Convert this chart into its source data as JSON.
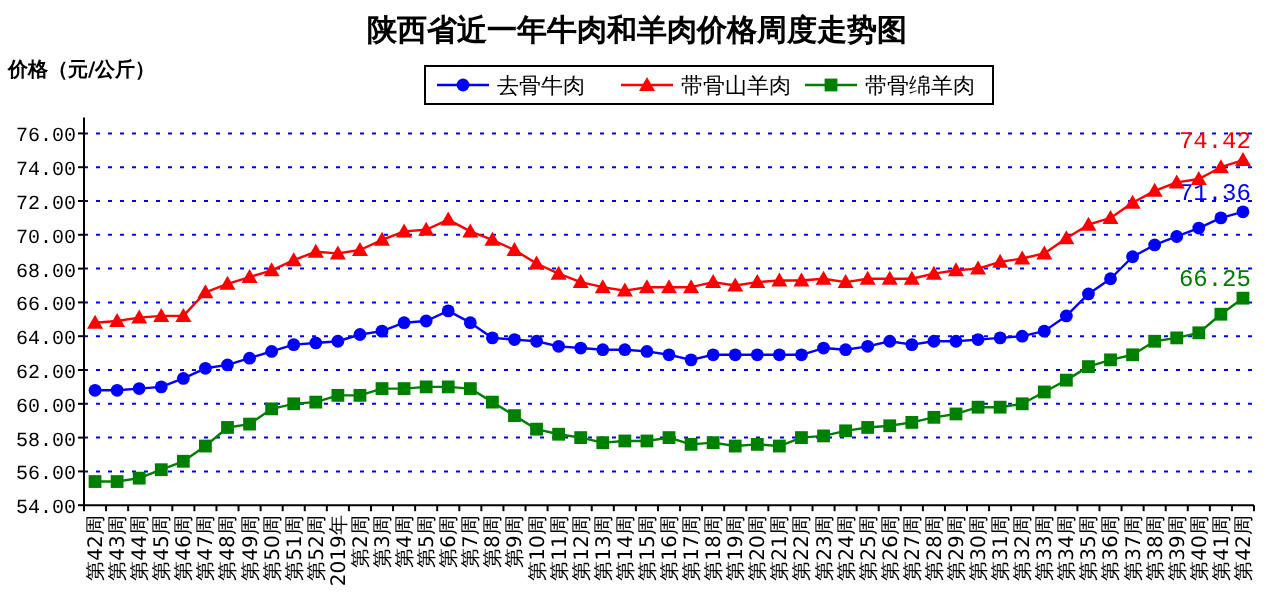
{
  "chart_data": {
    "type": "line",
    "title": "陕西省近一年牛肉和羊肉价格周度走势图",
    "ylabel": "价格（元/公斤）",
    "categories": [
      "第42周",
      "第43周",
      "第44周",
      "第45周",
      "第46周",
      "第47周",
      "第48周",
      "第49周",
      "第50周",
      "第51周",
      "第52周",
      "2019年",
      "第2周",
      "第3周",
      "第4周",
      "第5周",
      "第6周",
      "第7周",
      "第8周",
      "第9周",
      "第10周",
      "第11周",
      "第12周",
      "第13周",
      "第14周",
      "第15周",
      "第16周",
      "第17周",
      "第18周",
      "第19周",
      "第20周",
      "第21周",
      "第22周",
      "第23周",
      "第24周",
      "第25周",
      "第26周",
      "第27周",
      "第28周",
      "第29周",
      "第30周",
      "第31周",
      "第32周",
      "第33周",
      "第34周",
      "第35周",
      "第36周",
      "第37周",
      "第38周",
      "第39周",
      "第40周",
      "第41周",
      "第42周"
    ],
    "series": [
      {
        "name": "去骨牛肉",
        "color": "#0000ff",
        "marker": "circle",
        "values": [
          60.8,
          60.8,
          60.9,
          61.0,
          61.5,
          62.1,
          62.3,
          62.7,
          63.1,
          63.5,
          63.6,
          63.7,
          64.1,
          64.3,
          64.8,
          64.9,
          65.5,
          64.8,
          63.9,
          63.8,
          63.7,
          63.4,
          63.3,
          63.2,
          63.2,
          63.1,
          62.9,
          62.6,
          62.9,
          62.9,
          62.9,
          62.9,
          62.9,
          63.3,
          63.2,
          63.4,
          63.7,
          63.5,
          63.7,
          63.7,
          63.8,
          63.9,
          64.0,
          64.3,
          65.2,
          66.5,
          67.4,
          68.7,
          69.4,
          69.9,
          70.4,
          71.0,
          71.36
        ],
        "value_labels": [
          null,
          null,
          null,
          null,
          null,
          null,
          null,
          null,
          null,
          null,
          null,
          null,
          null,
          null,
          null,
          null,
          null,
          null,
          null,
          null,
          null,
          null,
          null,
          null,
          null,
          null,
          null,
          null,
          null,
          null,
          null,
          null,
          null,
          null,
          null,
          null,
          null,
          null,
          null,
          null,
          null,
          null,
          null,
          null,
          null,
          null,
          null,
          null,
          null,
          null,
          null,
          null,
          "71.36"
        ]
      },
      {
        "name": "带骨山羊肉",
        "color": "#ff0000",
        "marker": "triangle",
        "values": [
          64.8,
          64.9,
          65.1,
          65.2,
          65.2,
          66.6,
          67.1,
          67.5,
          67.9,
          68.5,
          69.0,
          68.9,
          69.1,
          69.7,
          70.2,
          70.3,
          70.9,
          70.2,
          69.7,
          69.1,
          68.3,
          67.7,
          67.2,
          66.9,
          66.7,
          66.9,
          66.9,
          66.9,
          67.2,
          67.0,
          67.2,
          67.3,
          67.3,
          67.4,
          67.2,
          67.4,
          67.4,
          67.4,
          67.7,
          67.9,
          68.0,
          68.4,
          68.6,
          68.9,
          69.8,
          70.6,
          71.0,
          71.9,
          72.6,
          73.1,
          73.3,
          74.0,
          74.42
        ],
        "value_labels": [
          null,
          null,
          null,
          null,
          null,
          null,
          null,
          null,
          null,
          null,
          null,
          null,
          null,
          null,
          null,
          null,
          null,
          null,
          null,
          null,
          null,
          null,
          null,
          null,
          null,
          null,
          null,
          null,
          null,
          null,
          null,
          null,
          null,
          null,
          null,
          null,
          null,
          null,
          null,
          null,
          null,
          null,
          null,
          null,
          null,
          null,
          null,
          null,
          null,
          null,
          null,
          null,
          "74.42"
        ]
      },
      {
        "name": "带骨绵羊肉",
        "color": "#008000",
        "marker": "square",
        "values": [
          55.4,
          55.4,
          55.6,
          56.1,
          56.6,
          57.5,
          58.6,
          58.8,
          59.7,
          60.0,
          60.1,
          60.5,
          60.5,
          60.9,
          60.9,
          61.0,
          61.0,
          60.9,
          60.1,
          59.3,
          58.5,
          58.2,
          58.0,
          57.7,
          57.8,
          57.8,
          58.0,
          57.6,
          57.7,
          57.5,
          57.6,
          57.5,
          58.0,
          58.1,
          58.4,
          58.6,
          58.7,
          58.9,
          59.2,
          59.4,
          59.8,
          59.8,
          60.0,
          60.7,
          61.4,
          62.2,
          62.6,
          62.9,
          63.7,
          63.9,
          64.2,
          65.3,
          66.25
        ],
        "value_labels": [
          null,
          null,
          null,
          null,
          null,
          null,
          null,
          null,
          null,
          null,
          null,
          null,
          null,
          null,
          null,
          null,
          null,
          null,
          null,
          null,
          null,
          null,
          null,
          null,
          null,
          null,
          null,
          null,
          null,
          null,
          null,
          null,
          null,
          null,
          null,
          null,
          null,
          null,
          null,
          null,
          null,
          null,
          null,
          null,
          null,
          null,
          null,
          null,
          null,
          null,
          null,
          null,
          "66.25"
        ]
      }
    ],
    "ylim": [
      54,
      76
    ],
    "yticks": [
      {
        "value": 54,
        "label": "54.00"
      },
      {
        "value": 56,
        "label": "56.00"
      },
      {
        "value": 58,
        "label": "58.00"
      },
      {
        "value": 60,
        "label": "60.00"
      },
      {
        "value": 62,
        "label": "62.00"
      },
      {
        "value": 64,
        "label": "64.00"
      },
      {
        "value": 66,
        "label": "66.00"
      },
      {
        "value": 68,
        "label": "68.00"
      },
      {
        "value": 70,
        "label": "70.00"
      },
      {
        "value": 72,
        "label": "72.00"
      },
      {
        "value": 74,
        "label": "74.00"
      },
      {
        "value": 76,
        "label": "76.00"
      }
    ],
    "grid": "y",
    "legend": "top"
  }
}
